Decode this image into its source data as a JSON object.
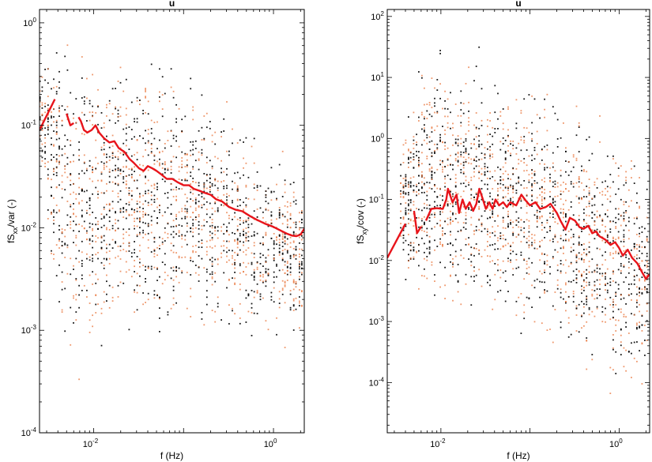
{
  "colors": {
    "median": "#e8141b",
    "black_points": "#000000",
    "orange_points": "#e8743b"
  },
  "chart_data": [
    {
      "type": "scatter",
      "title": "u",
      "xlabel": "f (Hz)",
      "ylabel_main": "fS",
      "ylabel_sub": "xx",
      "ylabel_rest": "/var (-)",
      "xscale": "log",
      "yscale": "log",
      "xlim": [
        0.0025,
        2.2
      ],
      "ylim": [
        0.0001,
        1.35
      ],
      "xticks": [
        {
          "v": 0.01,
          "base": "10",
          "exp": "-2"
        },
        {
          "v": 1,
          "base": "10",
          "exp": "0"
        }
      ],
      "yticks": [
        {
          "v": 0.0001,
          "base": "10",
          "exp": "-4"
        },
        {
          "v": 0.001,
          "base": "10",
          "exp": "-3"
        },
        {
          "v": 0.01,
          "base": "10",
          "exp": "-2"
        },
        {
          "v": 0.1,
          "base": "10",
          "exp": "-1"
        },
        {
          "v": 1,
          "base": "10",
          "exp": "0"
        }
      ],
      "scatter_x_range": [
        0.0025,
        2.2
      ],
      "scatter_envelope": [
        {
          "f": 0.0025,
          "lo": 0.03,
          "hi": 0.6
        },
        {
          "f": 0.004,
          "lo": 0.0008,
          "hi": 1.2
        },
        {
          "f": 0.006,
          "lo": 0.0002,
          "hi": 1.2
        },
        {
          "f": 0.01,
          "lo": 0.0003,
          "hi": 1.1
        },
        {
          "f": 0.1,
          "lo": 0.0006,
          "hi": 0.6
        },
        {
          "f": 1,
          "lo": 0.0006,
          "hi": 0.07
        },
        {
          "f": 2.2,
          "lo": 0.0005,
          "hi": 0.05
        }
      ],
      "median_segments": [
        [
          [
            0.0025,
            0.09
          ],
          [
            0.0037,
            0.18
          ]
        ],
        [
          [
            0.005,
            0.13
          ],
          [
            0.0055,
            0.1
          ],
          [
            0.006,
            0.105
          ]
        ],
        [
          [
            0.0068,
            0.12
          ],
          [
            0.0072,
            0.11
          ],
          [
            0.0078,
            0.09
          ],
          [
            0.0085,
            0.085
          ],
          [
            0.0095,
            0.09
          ],
          [
            0.0105,
            0.1
          ],
          [
            0.0115,
            0.085
          ],
          [
            0.013,
            0.075
          ],
          [
            0.015,
            0.068
          ],
          [
            0.017,
            0.07
          ],
          [
            0.019,
            0.06
          ],
          [
            0.022,
            0.055
          ],
          [
            0.025,
            0.047
          ],
          [
            0.028,
            0.043
          ],
          [
            0.032,
            0.038
          ],
          [
            0.036,
            0.036
          ],
          [
            0.04,
            0.04
          ],
          [
            0.045,
            0.038
          ],
          [
            0.05,
            0.036
          ],
          [
            0.057,
            0.033
          ],
          [
            0.065,
            0.03
          ],
          [
            0.075,
            0.03
          ],
          [
            0.085,
            0.028
          ],
          [
            0.1,
            0.026
          ],
          [
            0.115,
            0.026
          ],
          [
            0.13,
            0.024
          ],
          [
            0.15,
            0.023
          ],
          [
            0.17,
            0.022
          ],
          [
            0.2,
            0.021
          ],
          [
            0.23,
            0.019
          ],
          [
            0.27,
            0.018
          ],
          [
            0.32,
            0.016
          ],
          [
            0.38,
            0.015
          ],
          [
            0.45,
            0.0145
          ],
          [
            0.55,
            0.013
          ],
          [
            0.65,
            0.012
          ],
          [
            0.8,
            0.011
          ],
          [
            1.0,
            0.0102
          ],
          [
            1.2,
            0.0094
          ],
          [
            1.4,
            0.0088
          ],
          [
            1.6,
            0.0084
          ],
          [
            1.8,
            0.0083
          ],
          [
            2.0,
            0.0086
          ],
          [
            2.2,
            0.0098
          ]
        ]
      ]
    },
    {
      "type": "scatter",
      "title": "u",
      "xlabel": "f (Hz)",
      "ylabel_main": "fS",
      "ylabel_sub": "xy",
      "ylabel_rest": "/cov (-)",
      "xscale": "log",
      "yscale": "log",
      "xlim": [
        0.0025,
        2.2
      ],
      "ylim": [
        1.5e-05,
        130
      ],
      "xticks": [
        {
          "v": 0.01,
          "base": "10",
          "exp": "-2"
        },
        {
          "v": 1,
          "base": "10",
          "exp": "0"
        }
      ],
      "yticks": [
        {
          "v": 0.0001,
          "base": "10",
          "exp": "-4"
        },
        {
          "v": 0.001,
          "base": "10",
          "exp": "-3"
        },
        {
          "v": 0.01,
          "base": "10",
          "exp": "-2"
        },
        {
          "v": 0.1,
          "base": "10",
          "exp": "-1"
        },
        {
          "v": 1,
          "base": "10",
          "exp": "0"
        },
        {
          "v": 10,
          "base": "10",
          "exp": "1"
        },
        {
          "v": 100,
          "base": "10",
          "exp": "2"
        }
      ],
      "scatter_x_range": [
        0.0035,
        2.2
      ],
      "scatter_envelope": [
        {
          "f": 0.0035,
          "lo": 0.006,
          "hi": 1.2
        },
        {
          "f": 0.006,
          "lo": 0.0008,
          "hi": 30
        },
        {
          "f": 0.01,
          "lo": 0.0005,
          "hi": 100
        },
        {
          "f": 0.1,
          "lo": 0.0003,
          "hi": 20
        },
        {
          "f": 1,
          "lo": 3e-05,
          "hi": 3
        },
        {
          "f": 2.2,
          "lo": 3e-05,
          "hi": 1
        }
      ],
      "median_segments": [
        [
          [
            0.0025,
            0.011
          ],
          [
            0.004,
            0.04
          ]
        ],
        [
          [
            0.005,
            0.065
          ],
          [
            0.0054,
            0.028
          ],
          [
            0.006,
            0.036
          ]
        ],
        [
          [
            0.0068,
            0.045
          ],
          [
            0.0078,
            0.07
          ],
          [
            0.009,
            0.072
          ],
          [
            0.0105,
            0.07
          ],
          [
            0.0115,
            0.1
          ],
          [
            0.012,
            0.15
          ],
          [
            0.0135,
            0.09
          ],
          [
            0.015,
            0.12
          ],
          [
            0.016,
            0.06
          ],
          [
            0.0175,
            0.1
          ],
          [
            0.019,
            0.07
          ],
          [
            0.021,
            0.09
          ],
          [
            0.023,
            0.065
          ],
          [
            0.025,
            0.085
          ],
          [
            0.027,
            0.15
          ],
          [
            0.029,
            0.11
          ],
          [
            0.032,
            0.07
          ],
          [
            0.035,
            0.09
          ],
          [
            0.038,
            0.07
          ],
          [
            0.041,
            0.1
          ],
          [
            0.045,
            0.08
          ],
          [
            0.05,
            0.09
          ],
          [
            0.055,
            0.075
          ],
          [
            0.06,
            0.09
          ],
          [
            0.07,
            0.08
          ],
          [
            0.08,
            0.12
          ],
          [
            0.09,
            0.095
          ],
          [
            0.1,
            0.08
          ],
          [
            0.115,
            0.09
          ],
          [
            0.13,
            0.07
          ],
          [
            0.15,
            0.075
          ],
          [
            0.17,
            0.085
          ],
          [
            0.2,
            0.06
          ],
          [
            0.22,
            0.045
          ],
          [
            0.25,
            0.032
          ],
          [
            0.28,
            0.05
          ],
          [
            0.32,
            0.045
          ],
          [
            0.36,
            0.035
          ],
          [
            0.4,
            0.033
          ],
          [
            0.45,
            0.037
          ],
          [
            0.5,
            0.028
          ],
          [
            0.55,
            0.03
          ],
          [
            0.6,
            0.025
          ],
          [
            0.7,
            0.022
          ],
          [
            0.8,
            0.018
          ],
          [
            0.9,
            0.02
          ],
          [
            1.0,
            0.016
          ],
          [
            1.1,
            0.012
          ],
          [
            1.25,
            0.015
          ],
          [
            1.4,
            0.011
          ],
          [
            1.6,
            0.009
          ],
          [
            1.8,
            0.0065
          ],
          [
            2.0,
            0.005
          ],
          [
            2.2,
            0.006
          ]
        ]
      ]
    }
  ]
}
